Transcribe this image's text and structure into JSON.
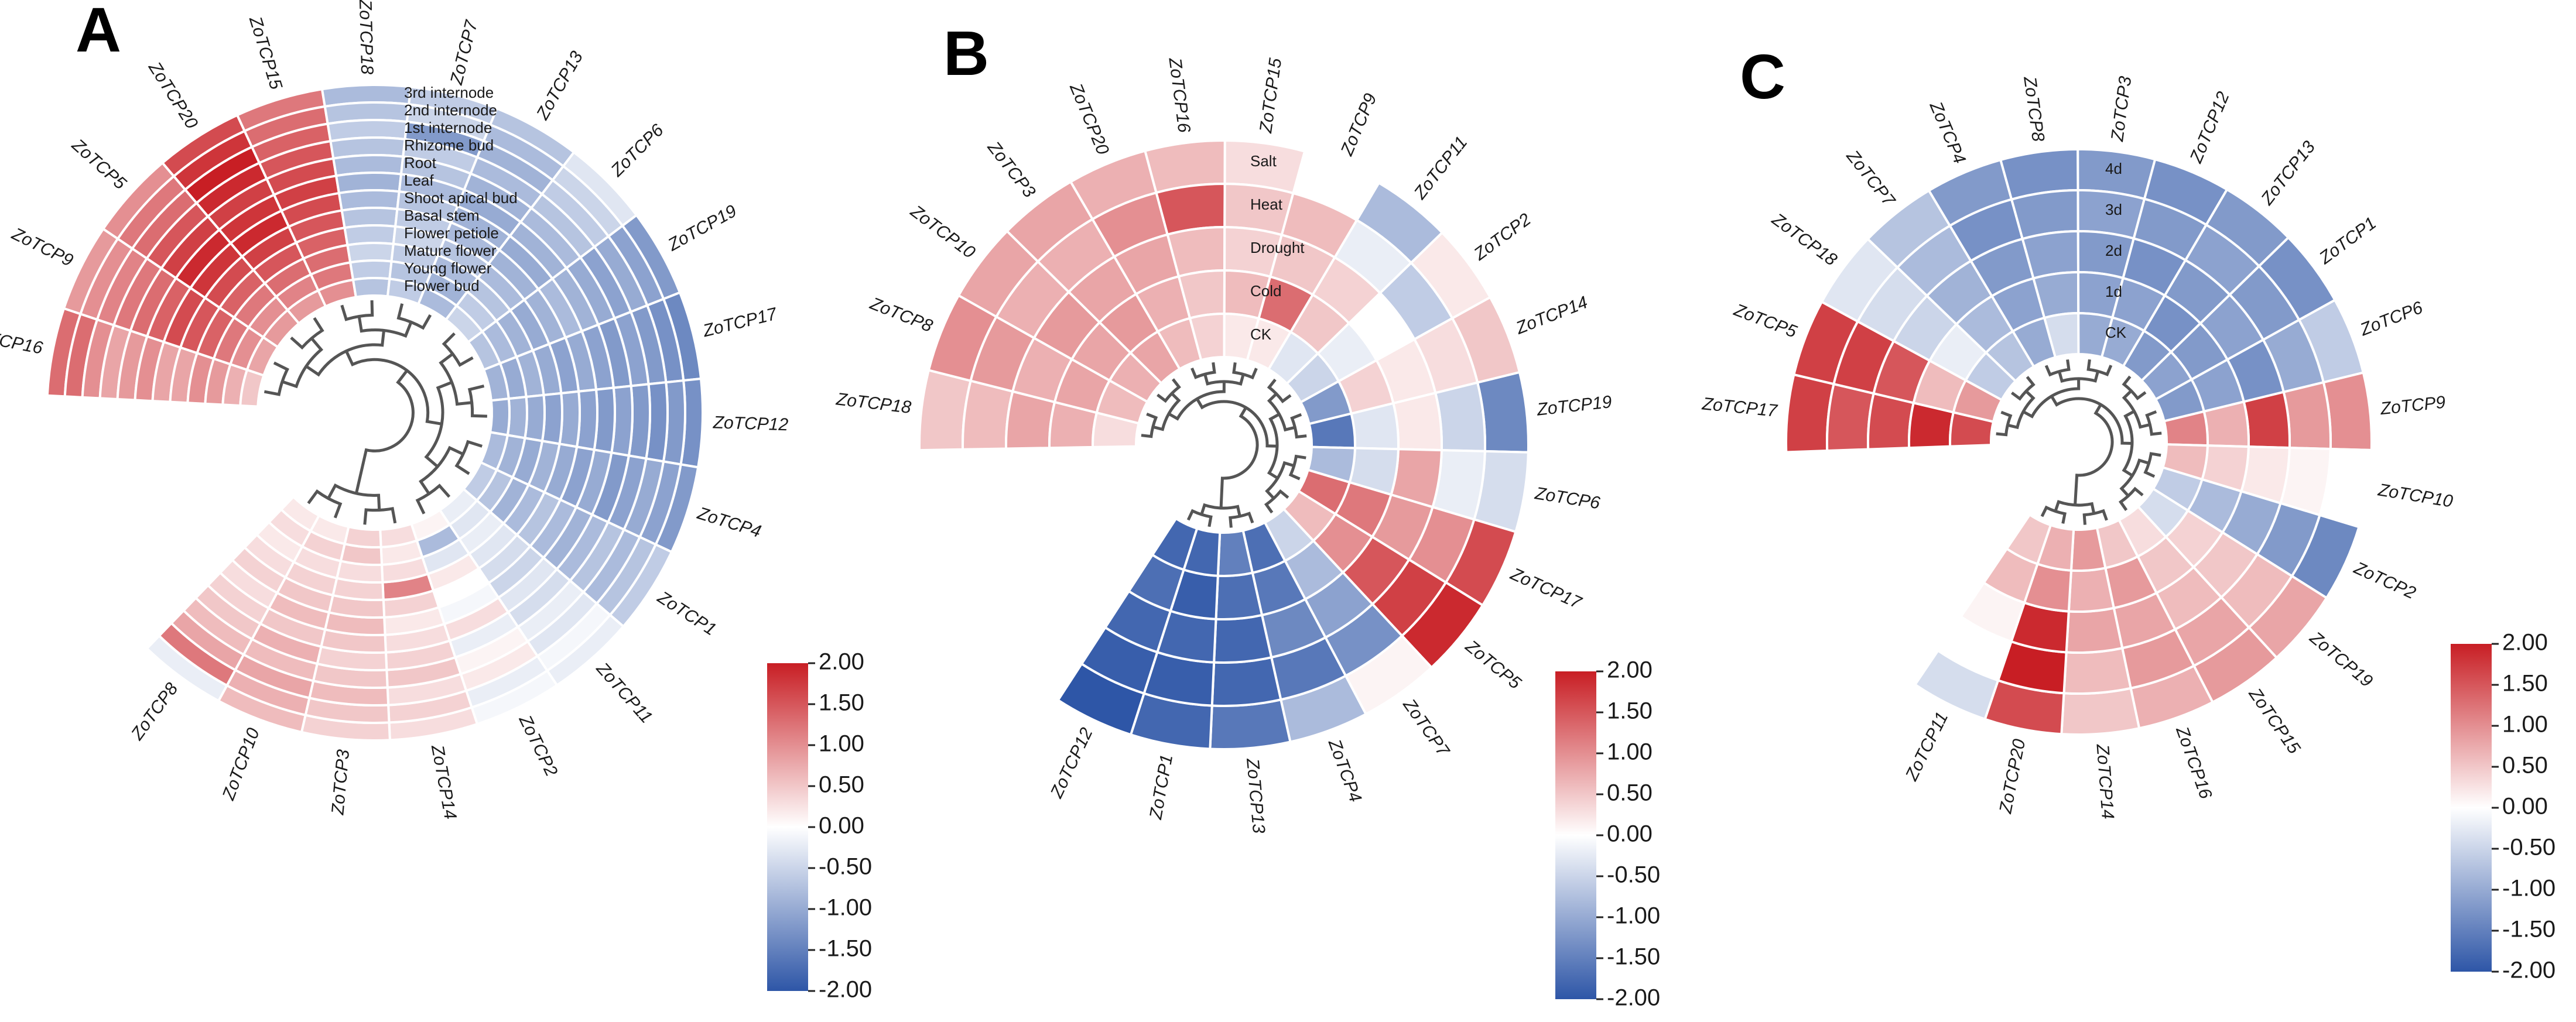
{
  "chart_data": [
    {
      "type": "heatmap",
      "layout": "circular",
      "panel": "A",
      "rings_outer_to_inner": [
        "3rd internode",
        "2nd internode",
        "1st internode",
        "Rhizome bud",
        "Root",
        "Leaf",
        "Shoot apical bud",
        "Basal stem",
        "Flower petiole",
        "Mature flower",
        "Young flower",
        "Flower bud"
      ],
      "genes": [
        "ZoTCP16",
        "ZoTCP9",
        "ZoTCP5",
        "ZoTCP20",
        "ZoTCP15",
        "ZoTCP18",
        "ZoTCP7",
        "ZoTCP13",
        "ZoTCP6",
        "ZoTCP19",
        "ZoTCP17",
        "ZoTCP12",
        "ZoTCP4",
        "ZoTCP1",
        "ZoTCP11",
        "ZoTCP2",
        "ZoTCP14",
        "ZoTCP3",
        "ZoTCP10",
        "ZoTCP8"
      ],
      "values": [
        [
          1.3,
          1.3,
          1.0,
          0.8,
          0.9,
          1.0,
          0.8,
          0.8,
          1.0,
          0.9,
          0.7,
          0.5
        ],
        [
          0.9,
          1.0,
          1.1,
          1.2,
          1.3,
          1.4,
          1.6,
          1.5,
          1.4,
          1.2,
          1.0,
          0.8
        ],
        [
          1.0,
          1.2,
          1.3,
          1.5,
          1.7,
          1.9,
          1.8,
          1.6,
          1.4,
          1.2,
          1.0,
          0.9
        ],
        [
          1.6,
          1.8,
          2.0,
          1.9,
          1.7,
          1.8,
          1.9,
          1.7,
          1.5,
          1.3,
          1.1,
          0.9
        ],
        [
          1.2,
          1.3,
          1.4,
          1.5,
          1.6,
          1.7,
          1.6,
          1.5,
          1.4,
          1.3,
          1.2,
          1.0
        ],
        [
          -0.8,
          -0.7,
          -0.6,
          -0.7,
          -0.8,
          -0.9,
          -0.8,
          -0.7,
          -0.6,
          -0.5,
          -0.6,
          -0.7
        ],
        [
          -0.6,
          -0.5,
          -1.2,
          -0.6,
          -0.7,
          -0.8,
          -0.7,
          -0.6,
          -0.5,
          -0.6,
          -0.7,
          -0.6
        ],
        [
          -0.7,
          -0.8,
          -0.9,
          -0.8,
          -0.9,
          -1.0,
          -0.9,
          -0.8,
          -0.7,
          -0.8,
          -0.9,
          -0.8
        ],
        [
          -0.3,
          -0.5,
          -0.6,
          -0.7,
          -0.8,
          -0.9,
          -1.0,
          -0.9,
          -0.8,
          -0.7,
          -0.6,
          -0.5
        ],
        [
          -1.2,
          -1.1,
          -1.0,
          -1.1,
          -1.0,
          -0.9,
          -0.8,
          -0.9,
          -1.0,
          -0.9,
          -0.8,
          -0.7
        ],
        [
          -1.4,
          -1.3,
          -1.2,
          -1.1,
          -1.2,
          -1.1,
          -1.0,
          -1.1,
          -1.0,
          -0.9,
          -1.0,
          -0.9
        ],
        [
          -1.3,
          -1.2,
          -1.3,
          -1.2,
          -1.1,
          -1.2,
          -1.1,
          -1.0,
          -1.1,
          -1.0,
          -0.9,
          -1.0
        ],
        [
          -1.2,
          -1.1,
          -1.0,
          -1.1,
          -1.2,
          -1.0,
          -1.1,
          -1.0,
          -0.9,
          -1.0,
          -0.9,
          -0.8
        ],
        [
          -0.6,
          -0.7,
          -0.8,
          -0.7,
          -0.8,
          -0.9,
          -0.8,
          -0.7,
          -0.8,
          -0.9,
          -0.7,
          -0.6
        ],
        [
          -0.2,
          -0.1,
          -0.3,
          -0.2,
          -0.4,
          -0.3,
          -0.5,
          -0.4,
          -0.3,
          -0.2,
          -0.3,
          -0.2
        ],
        [
          -0.1,
          -0.2,
          0.2,
          0.1,
          -0.2,
          0.3,
          -0.1,
          0.0,
          0.2,
          -0.3,
          -0.8,
          0.1
        ],
        [
          0.3,
          0.4,
          0.3,
          0.5,
          0.4,
          0.3,
          0.2,
          0.4,
          1.1,
          0.3,
          0.2,
          0.3
        ],
        [
          0.4,
          0.5,
          0.6,
          0.5,
          0.4,
          0.5,
          0.6,
          0.5,
          0.4,
          0.3,
          0.5,
          0.4
        ],
        [
          0.6,
          0.7,
          0.8,
          0.6,
          0.7,
          0.5,
          0.6,
          0.5,
          0.4,
          0.3,
          0.4,
          0.2
        ],
        [
          -0.2,
          1.2,
          0.8,
          0.6,
          0.5,
          0.4,
          0.3,
          0.4,
          0.3,
          0.2,
          0.3,
          0.2
        ]
      ],
      "colorbar": {
        "min": -2.0,
        "max": 2.0,
        "ticks": [
          "2.00",
          "1.50",
          "1.00",
          "0.50",
          "0.00",
          "-0.50",
          "-1.00",
          "-1.50",
          "-2.00"
        ]
      }
    },
    {
      "type": "heatmap",
      "layout": "circular",
      "panel": "B",
      "rings_outer_to_inner": [
        "Salt",
        "Heat",
        "Drought",
        "Cold",
        "CK"
      ],
      "genes": [
        "ZoTCP18",
        "ZoTCP8",
        "ZoTCP10",
        "ZoTCP3",
        "ZoTCP20",
        "ZoTCP16",
        "ZoTCP15",
        "ZoTCP9",
        "ZoTCP11",
        "ZoTCP2",
        "ZoTCP14",
        "ZoTCP19",
        "ZoTCP6",
        "ZoTCP17",
        "ZoTCP5",
        "ZoTCP7",
        "ZoTCP4",
        "ZoTCP13",
        "ZoTCP1",
        "ZoTCP12"
      ],
      "values": [
        [
          0.5,
          0.6,
          0.8,
          0.7,
          0.3
        ],
        [
          1.0,
          0.9,
          0.7,
          0.8,
          0.6
        ],
        [
          0.8,
          0.7,
          0.9,
          0.8,
          0.7
        ],
        [
          0.8,
          0.7,
          0.8,
          0.9,
          0.8
        ],
        [
          0.7,
          1.0,
          0.8,
          0.7,
          0.6
        ],
        [
          0.6,
          1.5,
          0.6,
          0.5,
          0.4
        ],
        [
          0.3,
          0.5,
          0.4,
          0.6,
          0.2
        ],
        [
          0.0,
          0.6,
          0.5,
          1.3,
          0.2
        ],
        [
          -0.8,
          -0.2,
          0.4,
          0.5,
          -0.3
        ],
        [
          0.2,
          -0.6,
          0.0,
          -0.2,
          -0.5
        ],
        [
          0.5,
          0.3,
          0.2,
          0.4,
          -1.2
        ],
        [
          -1.4,
          -0.5,
          0.2,
          -0.3,
          -1.6
        ],
        [
          -0.4,
          -0.2,
          0.8,
          -0.4,
          -0.8
        ],
        [
          1.6,
          1.0,
          0.9,
          1.2,
          1.3
        ],
        [
          1.9,
          1.7,
          1.5,
          1.0,
          0.6
        ],
        [
          0.1,
          -1.3,
          -1.1,
          -0.8,
          -0.5
        ],
        [
          -0.8,
          -1.6,
          -1.4,
          -1.6,
          -1.7
        ],
        [
          -1.6,
          -1.8,
          -1.8,
          -1.7,
          -1.5
        ],
        [
          -1.8,
          -1.9,
          -1.8,
          -1.9,
          -1.8
        ],
        [
          -2.0,
          -1.9,
          -1.8,
          -1.7,
          -1.8
        ]
      ],
      "colorbar": {
        "min": -2.0,
        "max": 2.0,
        "ticks": [
          "2.00",
          "1.50",
          "1.00",
          "0.50",
          "0.00",
          "-0.50",
          "-1.00",
          "-1.50",
          "-2.00"
        ]
      }
    },
    {
      "type": "heatmap",
      "layout": "circular",
      "panel": "C",
      "rings_outer_to_inner": [
        "4d",
        "3d",
        "2d",
        "1d",
        "CK"
      ],
      "genes": [
        "ZoTCP17",
        "ZoTCP5",
        "ZoTCP18",
        "ZoTCP7",
        "ZoTCP4",
        "ZoTCP8",
        "ZoTCP3",
        "ZoTCP12",
        "ZoTCP13",
        "ZoTCP1",
        "ZoTCP6",
        "ZoTCP9",
        "ZoTCP10",
        "ZoTCP2",
        "ZoTCP19",
        "ZoTCP15",
        "ZoTCP16",
        "ZoTCP14",
        "ZoTCP20",
        "ZoTCP11"
      ],
      "values": [
        [
          1.7,
          1.5,
          1.6,
          1.9,
          1.6
        ],
        [
          1.7,
          1.7,
          1.5,
          0.6,
          0.9
        ],
        [
          -0.3,
          -0.4,
          -0.5,
          -0.2,
          -0.6
        ],
        [
          -0.7,
          -0.8,
          -0.9,
          -0.8,
          -0.7
        ],
        [
          -1.2,
          -1.3,
          -1.2,
          -1.1,
          -1.0
        ],
        [
          -1.3,
          -1.2,
          -1.1,
          -1.0,
          -0.4
        ],
        [
          -1.2,
          -1.1,
          -1.2,
          -1.1,
          -1.0
        ],
        [
          -1.3,
          -1.2,
          -1.3,
          -1.1,
          -1.0
        ],
        [
          -1.2,
          -1.1,
          -1.2,
          -1.3,
          -1.2
        ],
        [
          -1.3,
          -1.2,
          -1.1,
          -1.2,
          -1.1
        ],
        [
          -0.6,
          -1.0,
          -1.3,
          -1.1,
          -1.2
        ],
        [
          1.0,
          0.9,
          1.7,
          0.7,
          1.1
        ],
        [
          0.0,
          0.1,
          0.2,
          0.4,
          0.6
        ],
        [
          -1.4,
          -1.2,
          -1.0,
          -0.8,
          -0.6
        ],
        [
          0.8,
          0.6,
          0.5,
          0.4,
          -0.4
        ],
        [
          0.9,
          0.8,
          0.6,
          0.5,
          0.3
        ],
        [
          0.7,
          0.9,
          0.8,
          0.9,
          0.5
        ],
        [
          0.5,
          0.6,
          0.8,
          0.7,
          0.9
        ],
        [
          1.6,
          2.0,
          1.9,
          1.0,
          0.7
        ],
        [
          -0.4,
          0.0,
          0.1,
          0.6,
          0.5
        ]
      ],
      "colorbar": {
        "min": -2.0,
        "max": 2.0,
        "ticks": [
          "2.00",
          "1.50",
          "1.00",
          "0.50",
          "0.00",
          "-0.50",
          "-1.00",
          "-1.50",
          "-2.00"
        ]
      }
    }
  ],
  "colors": {
    "high": "#c81e24",
    "mid": "#ffffff",
    "low": "#2e56a7",
    "tree": "#555555",
    "cell_border": "#ffffff"
  }
}
